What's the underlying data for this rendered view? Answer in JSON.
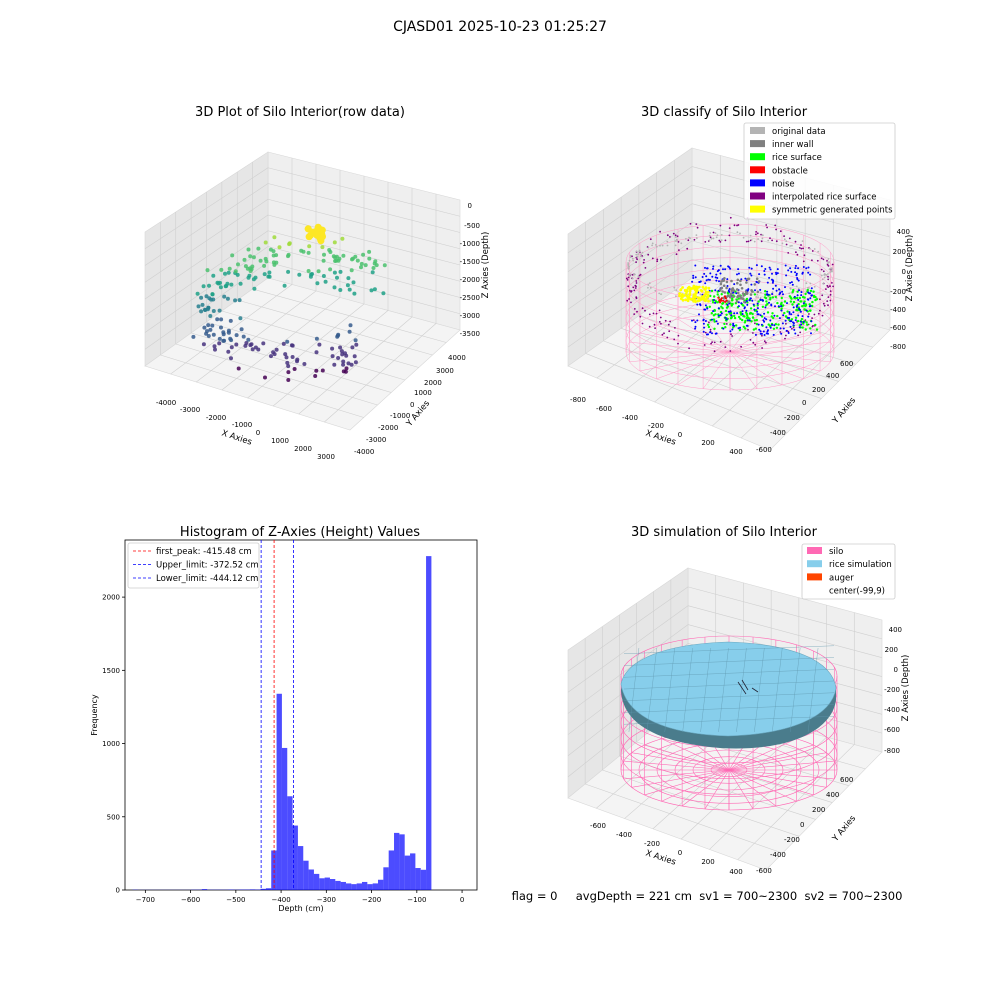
{
  "suptitle": "CJASD01 2025-10-23 01:25:27",
  "panel_raw": {
    "title": "3D Plot of Silo Interior(row data)",
    "xlabel": "X Axies",
    "ylabel": "Y Axies",
    "zlabel": "Z Axies (Depth)",
    "x_ticks": [
      "-4000",
      "-3000",
      "-2000",
      "-1000",
      "0",
      "1000",
      "2000",
      "3000"
    ],
    "y_ticks": [
      "4000",
      "3000",
      "2000",
      "1000",
      "0",
      "-1000",
      "-2000",
      "-3000",
      "-4000"
    ],
    "z_ticks": [
      "0",
      "-500",
      "-1000",
      "-1500",
      "-2000",
      "-2500",
      "-3000",
      "-3500"
    ]
  },
  "panel_classify": {
    "title": "3D classify of Silo Interior",
    "xlabel": "X Axies",
    "ylabel": "Y Axies",
    "zlabel": "Z Axies (Depth)",
    "x_ticks": [
      "-800",
      "-600",
      "-400",
      "-200",
      "0",
      "200",
      "400"
    ],
    "y_ticks": [
      "600",
      "400",
      "200",
      "0",
      "-200",
      "-400",
      "-600"
    ],
    "z_ticks": [
      "400",
      "200",
      "0",
      "-200",
      "-400",
      "-600",
      "-800"
    ],
    "legend": [
      {
        "label": "original data",
        "color": "#b4b4b4"
      },
      {
        "label": "inner wall",
        "color": "#808080"
      },
      {
        "label": "rice surface",
        "color": "#00ff00"
      },
      {
        "label": "obstacle",
        "color": "#ff0000"
      },
      {
        "label": "noise",
        "color": "#0000ff"
      },
      {
        "label": "interpolated rice surface",
        "color": "#800080"
      },
      {
        "label": "symmetric generated points",
        "color": "#ffff00"
      }
    ]
  },
  "panel_hist": {
    "title": "Histogram of Z-Axies (Height) Values",
    "xlabel": "Depth (cm)",
    "ylabel": "Frequency",
    "legend": [
      {
        "label": "first_peak: -415.48 cm",
        "color": "#ff0000"
      },
      {
        "label": "Upper_limit: -372.52 cm",
        "color": "#0000ff"
      },
      {
        "label": "Lower_limit: -444.12 cm",
        "color": "#0000ff"
      }
    ]
  },
  "panel_sim": {
    "title": "3D simulation of Silo Interior",
    "xlabel": "X Axies",
    "ylabel": "Y Axies",
    "zlabel": "Z Axies (Depth)",
    "x_ticks": [
      "-600",
      "-400",
      "-200",
      "0",
      "200",
      "400"
    ],
    "y_ticks": [
      "600",
      "400",
      "200",
      "0",
      "-200",
      "-400",
      "-600"
    ],
    "z_ticks": [
      "400",
      "200",
      "0",
      "-200",
      "-400",
      "-600",
      "-800"
    ],
    "legend": [
      {
        "label": "silo",
        "color": "#ff69b4"
      },
      {
        "label": "rice simulation",
        "color": "#87ceeb"
      },
      {
        "label": "auger",
        "color": "#ff4500"
      },
      {
        "label": "center(-99,9)",
        "color": ""
      }
    ]
  },
  "footer_text": "flag = 0     avgDepth = 221 cm  sv1 = 700~2300  sv2 = 700~2300",
  "chart_data": {
    "type": "bar",
    "title": "Histogram of Z-Axies (Height) Values",
    "xlabel": "Depth (cm)",
    "ylabel": "Frequency",
    "xlim": [
      -745,
      33
    ],
    "ylim": [
      0,
      2390
    ],
    "x_ticks": [
      -700,
      -600,
      -500,
      -400,
      -300,
      -200,
      -100,
      0
    ],
    "y_ticks": [
      0,
      500,
      1000,
      1500,
      2000
    ],
    "color": "#0000ff",
    "bin_width": 11.8,
    "bin_starts": [
      -728.6,
      -716.8,
      -705.0,
      -693.2,
      -681.4,
      -669.6,
      -657.8,
      -646.0,
      -634.2,
      -622.4,
      -610.6,
      -598.8,
      -587.0,
      -575.2,
      -563.4,
      -551.6,
      -539.8,
      -528.0,
      -516.2,
      -504.4,
      -492.6,
      -480.8,
      -469.0,
      -457.2,
      -445.4,
      -433.6,
      -421.8,
      -410.0,
      -398.2,
      -386.4,
      -374.6,
      -362.8,
      -351.0,
      -339.2,
      -327.4,
      -315.6,
      -303.8,
      -292.0,
      -280.2,
      -268.4,
      -256.6,
      -244.8,
      -233.0,
      -221.2,
      -209.4,
      -197.6,
      -185.8,
      -174.0,
      -162.2,
      -150.4,
      -138.6,
      -126.8,
      -115.0,
      -103.2,
      -91.4,
      -79.6,
      -67.8,
      -56.0,
      -44.2,
      -32.4,
      -20.6,
      -8.8
    ],
    "counts": [
      2,
      1,
      1,
      1,
      1,
      1,
      1,
      1,
      1,
      1,
      1,
      2,
      2,
      6,
      2,
      2,
      2,
      2,
      3,
      2,
      3,
      3,
      4,
      3,
      8,
      12,
      270,
      1340,
      970,
      640,
      440,
      300,
      200,
      140,
      110,
      80,
      85,
      75,
      62,
      55,
      45,
      40,
      45,
      55,
      40,
      45,
      70,
      155,
      270,
      390,
      380,
      235,
      250,
      150,
      138,
      2280,
      0,
      0,
      0,
      0,
      0,
      0
    ],
    "lines": [
      {
        "name": "first_peak",
        "x": -415.48,
        "color": "#ff0000"
      },
      {
        "name": "Upper_limit",
        "x": -372.52,
        "color": "#0000ff"
      },
      {
        "name": "Lower_limit",
        "x": -444.12,
        "color": "#0000ff"
      }
    ]
  }
}
